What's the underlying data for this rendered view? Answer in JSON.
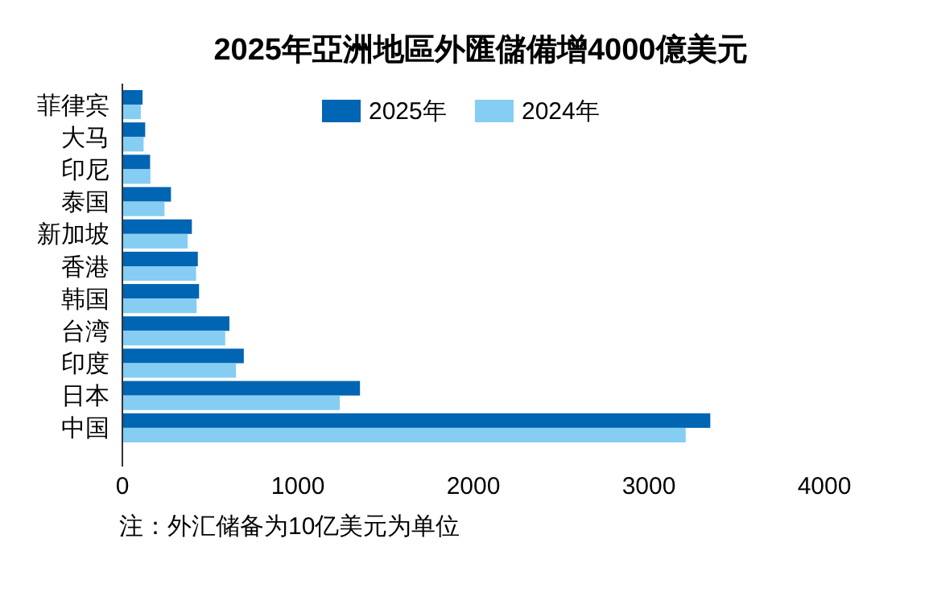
{
  "chart_data": {
    "type": "bar",
    "orientation": "horizontal",
    "title": "2025年亞洲地區外匯儲備增4000億美元",
    "categories": [
      "菲律宾",
      "大马",
      "印尼",
      "泰国",
      "新加坡",
      "香港",
      "韩国",
      "台湾",
      "印度",
      "日本",
      "中国"
    ],
    "series": [
      {
        "name": "2025年",
        "color": "#0065b3",
        "values": [
          115,
          130,
          158,
          277,
          396,
          430,
          437,
          610,
          692,
          1354,
          3350
        ]
      },
      {
        "name": "2024年",
        "color": "#85cdf2",
        "values": [
          105,
          121,
          160,
          240,
          372,
          420,
          423,
          586,
          647,
          1239,
          3210
        ]
      }
    ],
    "xlim": [
      0,
      4000
    ],
    "xticks": [
      0,
      1000,
      2000,
      3000,
      4000
    ],
    "legend": "top right",
    "grid": false,
    "annotations": [
      "注：外汇储备为10亿美元为单位"
    ]
  }
}
